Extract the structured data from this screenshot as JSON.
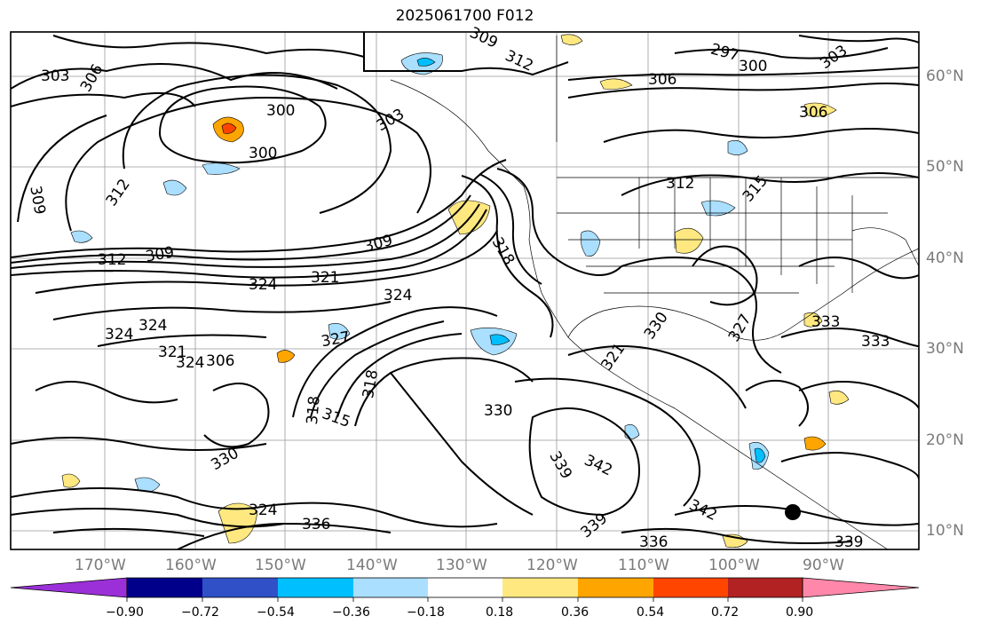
{
  "title": "2025061700 F012",
  "lat_labels": [
    "60°N",
    "50°N",
    "40°N",
    "30°N",
    "20°N",
    "10°N"
  ],
  "lon_labels": [
    "170°W",
    "160°W",
    "150°W",
    "140°W",
    "130°W",
    "120°W",
    "110°W",
    "100°W",
    "90°W"
  ],
  "contour_labels": [
    "303",
    "306",
    "300",
    "306",
    "300",
    "303",
    "309",
    "312",
    "309",
    "312",
    "297",
    "300",
    "303",
    "306",
    "306",
    "315",
    "312",
    "309",
    "312",
    "309",
    "324",
    "321",
    "324",
    "318",
    "324",
    "327",
    "330",
    "324",
    "321",
    "324",
    "327",
    "318",
    "318",
    "315",
    "330",
    "333",
    "333",
    "321",
    "324",
    "336",
    "339",
    "342",
    "342",
    "339",
    "336",
    "339",
    "330"
  ],
  "colorbar": {
    "colors": [
      "#9b30d9",
      "#00008b",
      "#3050c8",
      "#00bfff",
      "#aadfff",
      "#ffffff",
      "#ffe880",
      "#ffa500",
      "#ff4500",
      "#b22222",
      "#ff88aa"
    ],
    "ticks": [
      "−0.90",
      "−0.72",
      "−0.54",
      "−0.36",
      "−0.18",
      "0.18",
      "0.36",
      "0.54",
      "0.72",
      "0.90"
    ]
  }
}
